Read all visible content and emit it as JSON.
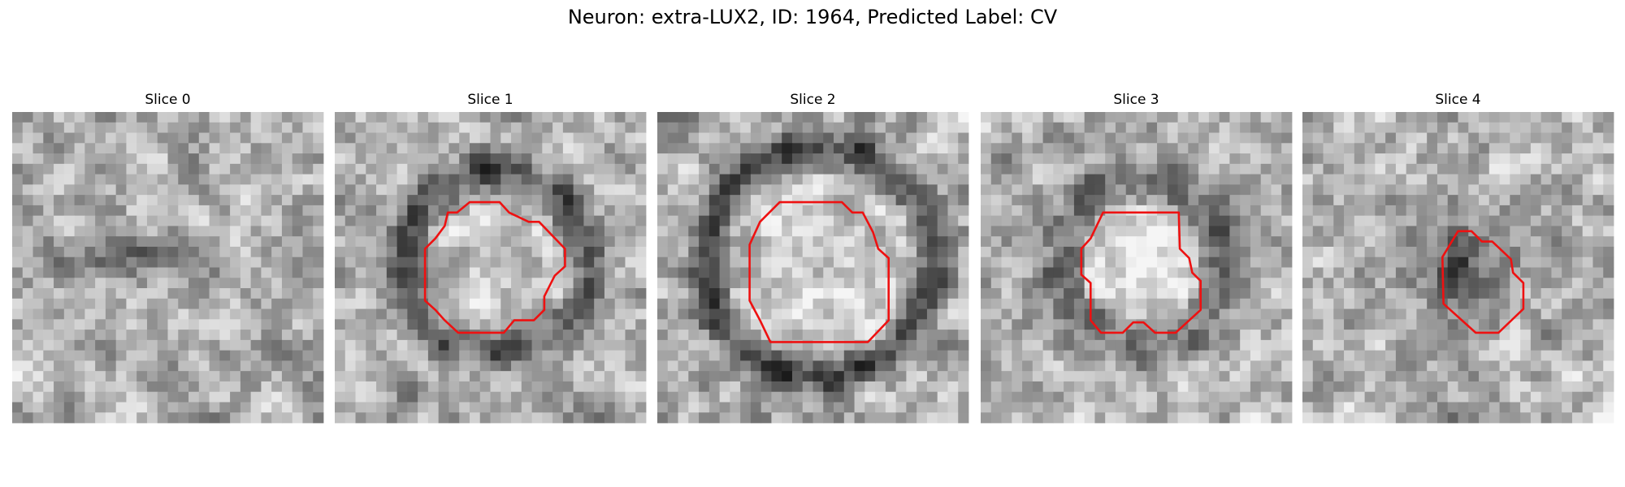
{
  "header": {
    "title": "Neuron: extra-LUX2, ID: 1964, Predicted Label: CV"
  },
  "panels": [
    {
      "title": "Slice 0"
    },
    {
      "title": "Slice 1"
    },
    {
      "title": "Slice 2"
    },
    {
      "title": "Slice 3"
    },
    {
      "title": "Slice 4"
    }
  ]
}
